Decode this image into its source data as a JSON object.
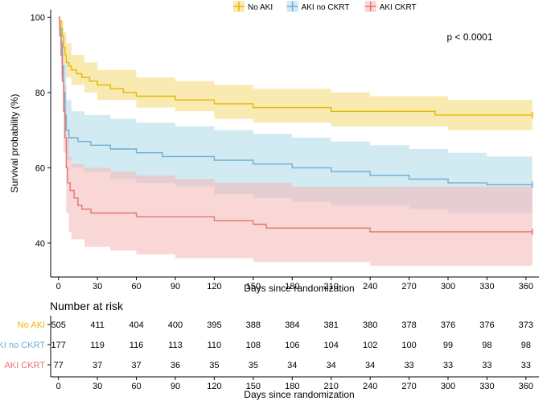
{
  "chart_data": {
    "type": "line",
    "subtype": "kaplan-meier",
    "title": "",
    "xlabel": "Days since randomization",
    "ylabel": "Survival probability (%)",
    "xlim": [
      -6,
      370
    ],
    "ylim": [
      31,
      102
    ],
    "xticks": [
      0,
      30,
      60,
      90,
      120,
      150,
      180,
      210,
      240,
      270,
      300,
      330,
      360
    ],
    "yticks": [
      40,
      60,
      80,
      100
    ],
    "annotation": "p < 0.0001",
    "legend_position": "top",
    "series": [
      {
        "name": "No AKI",
        "color": "#E7B800",
        "band_color": "#F2D871",
        "curve": [
          [
            0,
            100
          ],
          [
            1,
            99
          ],
          [
            2,
            97
          ],
          [
            3,
            95
          ],
          [
            4,
            92
          ],
          [
            5,
            90
          ],
          [
            6,
            88
          ],
          [
            8,
            87
          ],
          [
            10,
            86
          ],
          [
            14,
            85
          ],
          [
            18,
            84
          ],
          [
            24,
            83
          ],
          [
            30,
            82
          ],
          [
            40,
            81
          ],
          [
            50,
            80
          ],
          [
            60,
            79
          ],
          [
            90,
            78
          ],
          [
            105,
            78
          ],
          [
            120,
            77
          ],
          [
            150,
            76
          ],
          [
            180,
            76
          ],
          [
            210,
            75
          ],
          [
            240,
            75
          ],
          [
            270,
            75
          ],
          [
            290,
            74
          ],
          [
            330,
            74
          ],
          [
            360,
            74
          ],
          [
            365,
            74
          ]
        ],
        "upper": [
          [
            0,
            100
          ],
          [
            2,
            99
          ],
          [
            4,
            96
          ],
          [
            6,
            93
          ],
          [
            10,
            90
          ],
          [
            20,
            88
          ],
          [
            30,
            86
          ],
          [
            60,
            84
          ],
          [
            90,
            83
          ],
          [
            120,
            82
          ],
          [
            150,
            81
          ],
          [
            180,
            81
          ],
          [
            210,
            80
          ],
          [
            240,
            79
          ],
          [
            270,
            79
          ],
          [
            300,
            78
          ],
          [
            330,
            78
          ],
          [
            365,
            78
          ]
        ],
        "lower": [
          [
            0,
            100
          ],
          [
            2,
            95
          ],
          [
            4,
            88
          ],
          [
            6,
            84
          ],
          [
            10,
            82
          ],
          [
            20,
            80
          ],
          [
            30,
            78
          ],
          [
            60,
            76
          ],
          [
            90,
            75
          ],
          [
            120,
            73
          ],
          [
            150,
            72
          ],
          [
            180,
            72
          ],
          [
            210,
            71
          ],
          [
            240,
            71
          ],
          [
            270,
            71
          ],
          [
            300,
            70
          ],
          [
            330,
            70
          ],
          [
            365,
            70
          ]
        ]
      },
      {
        "name": "AKI no CKRT",
        "color": "#6BAED6",
        "band_color": "#ADD8E6",
        "curve": [
          [
            0,
            100
          ],
          [
            1,
            97
          ],
          [
            2,
            93
          ],
          [
            3,
            87
          ],
          [
            4,
            80
          ],
          [
            5,
            74
          ],
          [
            6,
            70
          ],
          [
            8,
            68
          ],
          [
            15,
            67
          ],
          [
            25,
            66
          ],
          [
            40,
            65
          ],
          [
            60,
            64
          ],
          [
            80,
            63
          ],
          [
            100,
            63
          ],
          [
            120,
            62
          ],
          [
            150,
            61
          ],
          [
            180,
            60
          ],
          [
            210,
            59
          ],
          [
            240,
            58
          ],
          [
            270,
            57
          ],
          [
            300,
            56
          ],
          [
            330,
            55.5
          ],
          [
            360,
            55.5
          ],
          [
            365,
            55.5
          ]
        ],
        "upper": [
          [
            0,
            100
          ],
          [
            2,
            96
          ],
          [
            4,
            88
          ],
          [
            6,
            78
          ],
          [
            10,
            75
          ],
          [
            20,
            74
          ],
          [
            40,
            73
          ],
          [
            60,
            72
          ],
          [
            90,
            71
          ],
          [
            120,
            70
          ],
          [
            150,
            69
          ],
          [
            180,
            68
          ],
          [
            210,
            67
          ],
          [
            240,
            66
          ],
          [
            270,
            65
          ],
          [
            300,
            64
          ],
          [
            330,
            63
          ],
          [
            365,
            63
          ]
        ],
        "lower": [
          [
            0,
            100
          ],
          [
            2,
            89
          ],
          [
            4,
            72
          ],
          [
            6,
            62
          ],
          [
            10,
            60
          ],
          [
            20,
            59
          ],
          [
            40,
            57
          ],
          [
            60,
            56
          ],
          [
            90,
            55
          ],
          [
            120,
            53
          ],
          [
            150,
            52
          ],
          [
            180,
            51
          ],
          [
            210,
            50
          ],
          [
            240,
            50
          ],
          [
            270,
            49
          ],
          [
            300,
            48
          ],
          [
            330,
            48
          ],
          [
            365,
            48
          ]
        ]
      },
      {
        "name": "AKI CKRT",
        "color": "#E5736F",
        "band_color": "#F4B6B6",
        "curve": [
          [
            0,
            100
          ],
          [
            1,
            95
          ],
          [
            2,
            90
          ],
          [
            3,
            83
          ],
          [
            4,
            75
          ],
          [
            5,
            68
          ],
          [
            6,
            60
          ],
          [
            7,
            56
          ],
          [
            9,
            54
          ],
          [
            12,
            52
          ],
          [
            15,
            50
          ],
          [
            18,
            49
          ],
          [
            25,
            48
          ],
          [
            40,
            48
          ],
          [
            60,
            47
          ],
          [
            90,
            47
          ],
          [
            120,
            46
          ],
          [
            150,
            45
          ],
          [
            160,
            44
          ],
          [
            200,
            44
          ],
          [
            240,
            43
          ],
          [
            270,
            43
          ],
          [
            300,
            43
          ],
          [
            330,
            43
          ],
          [
            360,
            43
          ],
          [
            365,
            43
          ]
        ],
        "upper": [
          [
            0,
            100
          ],
          [
            2,
            94
          ],
          [
            4,
            82
          ],
          [
            6,
            68
          ],
          [
            8,
            63
          ],
          [
            10,
            61
          ],
          [
            20,
            60
          ],
          [
            40,
            59
          ],
          [
            60,
            58
          ],
          [
            90,
            57
          ],
          [
            120,
            56
          ],
          [
            150,
            56
          ],
          [
            180,
            55
          ],
          [
            210,
            55
          ],
          [
            240,
            55
          ],
          [
            270,
            55
          ],
          [
            300,
            55
          ],
          [
            330,
            55
          ],
          [
            365,
            55
          ]
        ],
        "lower": [
          [
            0,
            100
          ],
          [
            2,
            84
          ],
          [
            4,
            64
          ],
          [
            6,
            48
          ],
          [
            8,
            43
          ],
          [
            10,
            41
          ],
          [
            20,
            39
          ],
          [
            40,
            38
          ],
          [
            60,
            37
          ],
          [
            90,
            36
          ],
          [
            120,
            36
          ],
          [
            150,
            35
          ],
          [
            180,
            35
          ],
          [
            210,
            35
          ],
          [
            240,
            34
          ],
          [
            270,
            34
          ],
          [
            300,
            34
          ],
          [
            330,
            34
          ],
          [
            365,
            34
          ]
        ]
      }
    ],
    "risk_table": {
      "title": "Number at risk",
      "xlabel": "Days since randomization",
      "times": [
        0,
        30,
        60,
        90,
        120,
        150,
        180,
        210,
        240,
        270,
        300,
        330,
        360
      ],
      "rows": [
        {
          "name": "No AKI",
          "color": "#E7B800",
          "values": [
            505,
            411,
            404,
            400,
            395,
            388,
            384,
            381,
            380,
            378,
            376,
            376,
            373
          ]
        },
        {
          "name": "AKI no CKRT",
          "color": "#6BAED6",
          "values": [
            177,
            119,
            116,
            113,
            110,
            108,
            106,
            104,
            102,
            100,
            99,
            98,
            98
          ]
        },
        {
          "name": "AKI CKRT",
          "color": "#E5736F",
          "values": [
            77,
            37,
            37,
            36,
            35,
            35,
            34,
            34,
            34,
            33,
            33,
            33,
            33
          ]
        }
      ]
    }
  }
}
